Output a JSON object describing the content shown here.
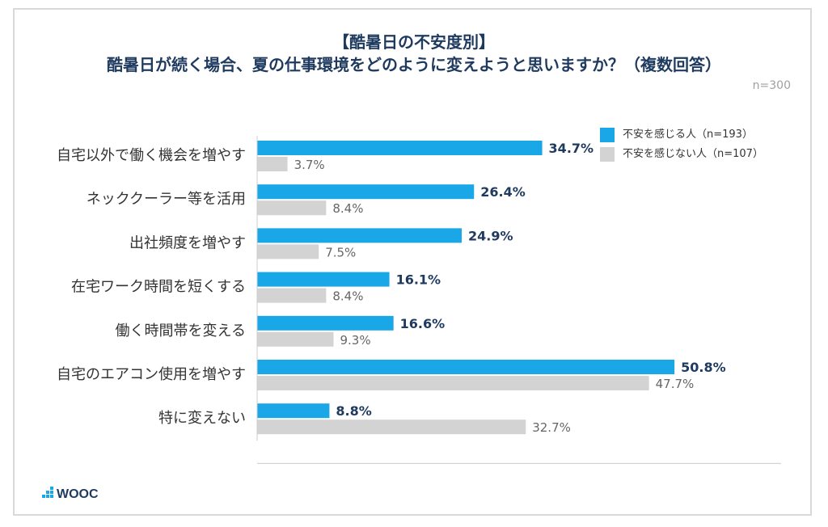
{
  "title_line1": "【酷暑日の不安度別】",
  "title_line2": "酷暑日が続く場合、夏の仕事環境をどのように変えようと思いますか？（複数回答）",
  "sample_size": "n=300",
  "logo_text": "WOOC",
  "colors": {
    "series1": "#1aa7e8",
    "series2": "#d3d3d3",
    "label1": "#1f3a5f",
    "label2": "#666666",
    "axis": "#cccccc"
  },
  "chart_data": {
    "type": "bar",
    "orientation": "horizontal",
    "categories": [
      "自宅以外で働く機会を増やす",
      "ネッククーラー等を活用",
      "出社頻度を増やす",
      "在宅ワーク時間を短くする",
      "働く時間帯を変える",
      "自宅のエアコン使用を増やす",
      "特に変えない"
    ],
    "series": [
      {
        "name": "不安を感じる人（n=193）",
        "values": [
          34.7,
          26.4,
          24.9,
          16.1,
          16.6,
          50.8,
          8.8
        ],
        "labels": [
          "34.7%",
          "26.4%",
          "24.9%",
          "16.1%",
          "16.6%",
          "50.8%",
          "8.8%"
        ]
      },
      {
        "name": "不安を感じない人（n=107）",
        "values": [
          3.7,
          8.4,
          7.5,
          8.4,
          9.3,
          47.7,
          32.7
        ],
        "labels": [
          "3.7%",
          "8.4%",
          "7.5%",
          "8.4%",
          "9.3%",
          "47.7%",
          "32.7%"
        ]
      }
    ],
    "xlim": [
      0,
      60
    ],
    "grid": false,
    "legend_position": "top-right"
  }
}
